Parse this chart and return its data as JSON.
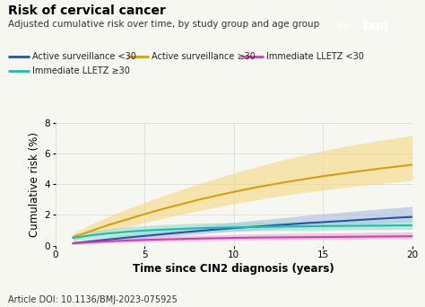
{
  "title": "Risk of cervical cancer",
  "subtitle": "Adjusted cumulative risk over time, by study group and age group",
  "xlabel": "Time since CIN2 diagnosis (years)",
  "ylabel": "Cumulative risk (%)",
  "doi": "Article DOI: 10.1136/BMJ-2023-075925",
  "xlim": [
    0,
    20
  ],
  "ylim": [
    0,
    8
  ],
  "yticks": [
    0,
    2,
    4,
    6,
    8
  ],
  "xticks": [
    0,
    5,
    10,
    15,
    20
  ],
  "x": [
    1,
    2,
    3,
    4,
    5,
    6,
    7,
    8,
    9,
    10,
    11,
    12,
    13,
    14,
    15,
    16,
    17,
    18,
    19,
    20
  ],
  "series_order": [
    "as_lt30",
    "as_ge30",
    "imm_lt30",
    "imm_ge30"
  ],
  "series": {
    "as_lt30": {
      "mean": [
        0.15,
        0.28,
        0.4,
        0.52,
        0.63,
        0.74,
        0.85,
        0.95,
        1.05,
        1.14,
        1.22,
        1.3,
        1.38,
        1.46,
        1.53,
        1.6,
        1.67,
        1.74,
        1.81,
        1.87
      ],
      "lower": [
        0.08,
        0.17,
        0.27,
        0.37,
        0.47,
        0.57,
        0.67,
        0.76,
        0.85,
        0.93,
        1.0,
        1.07,
        1.14,
        1.21,
        1.27,
        1.33,
        1.39,
        1.45,
        1.51,
        1.57
      ],
      "upper": [
        0.25,
        0.42,
        0.57,
        0.73,
        0.87,
        1.01,
        1.15,
        1.28,
        1.4,
        1.52,
        1.63,
        1.74,
        1.85,
        1.96,
        2.07,
        2.17,
        2.27,
        2.37,
        2.46,
        2.55
      ],
      "color": "#2255aa",
      "ci_color": "#aabbdd",
      "label": "Active surveillance <30"
    },
    "as_ge30": {
      "mean": [
        0.55,
        0.95,
        1.35,
        1.7,
        2.05,
        2.38,
        2.68,
        2.98,
        3.25,
        3.5,
        3.74,
        3.95,
        4.15,
        4.34,
        4.52,
        4.68,
        4.84,
        4.99,
        5.13,
        5.27
      ],
      "lower": [
        0.35,
        0.65,
        0.95,
        1.22,
        1.5,
        1.77,
        2.03,
        2.27,
        2.51,
        2.73,
        2.93,
        3.12,
        3.3,
        3.47,
        3.62,
        3.76,
        3.9,
        4.02,
        4.14,
        4.25
      ],
      "upper": [
        0.8,
        1.38,
        1.9,
        2.38,
        2.82,
        3.22,
        3.62,
        4.01,
        4.37,
        4.72,
        5.05,
        5.36,
        5.65,
        5.92,
        6.18,
        6.42,
        6.62,
        6.82,
        7.0,
        7.18
      ],
      "color": "#d4a010",
      "ci_color": "#f5d880",
      "label": "Active surveillance ≥30"
    },
    "imm_lt30": {
      "mean": [
        0.15,
        0.22,
        0.28,
        0.33,
        0.37,
        0.4,
        0.43,
        0.46,
        0.48,
        0.5,
        0.52,
        0.53,
        0.54,
        0.55,
        0.56,
        0.57,
        0.58,
        0.59,
        0.6,
        0.61
      ],
      "lower": [
        0.08,
        0.13,
        0.17,
        0.21,
        0.24,
        0.27,
        0.29,
        0.31,
        0.33,
        0.35,
        0.36,
        0.37,
        0.38,
        0.39,
        0.4,
        0.41,
        0.42,
        0.43,
        0.44,
        0.45
      ],
      "upper": [
        0.27,
        0.37,
        0.44,
        0.5,
        0.56,
        0.6,
        0.64,
        0.67,
        0.7,
        0.73,
        0.75,
        0.77,
        0.79,
        0.81,
        0.82,
        0.84,
        0.85,
        0.87,
        0.88,
        0.89
      ],
      "color": "#cc44aa",
      "ci_color": "#eea8dd",
      "label": "Immediate LLETZ <30"
    },
    "imm_ge30": {
      "mean": [
        0.5,
        0.67,
        0.8,
        0.9,
        0.98,
        1.04,
        1.09,
        1.13,
        1.16,
        1.19,
        1.21,
        1.23,
        1.25,
        1.26,
        1.27,
        1.28,
        1.29,
        1.3,
        1.31,
        1.32
      ],
      "lower": [
        0.32,
        0.46,
        0.57,
        0.66,
        0.73,
        0.79,
        0.84,
        0.88,
        0.91,
        0.94,
        0.96,
        0.98,
        0.99,
        1.0,
        1.01,
        1.02,
        1.03,
        1.04,
        1.05,
        1.06
      ],
      "upper": [
        0.73,
        0.95,
        1.1,
        1.22,
        1.3,
        1.37,
        1.42,
        1.46,
        1.49,
        1.51,
        1.53,
        1.55,
        1.57,
        1.58,
        1.59,
        1.6,
        1.62,
        1.63,
        1.64,
        1.65
      ],
      "color": "#22bbaa",
      "ci_color": "#99ddcc",
      "label": "Immediate LLETZ ≥30"
    }
  },
  "background_color": "#f7f7f2",
  "plot_bg_color": "#f7f7f2",
  "grid_color": "#dddddd",
  "title_fontsize": 10,
  "subtitle_fontsize": 7.5,
  "axis_label_fontsize": 8.5,
  "tick_fontsize": 7.5,
  "legend_fontsize": 7,
  "doi_fontsize": 7,
  "bmj_bg": "#3366bb"
}
